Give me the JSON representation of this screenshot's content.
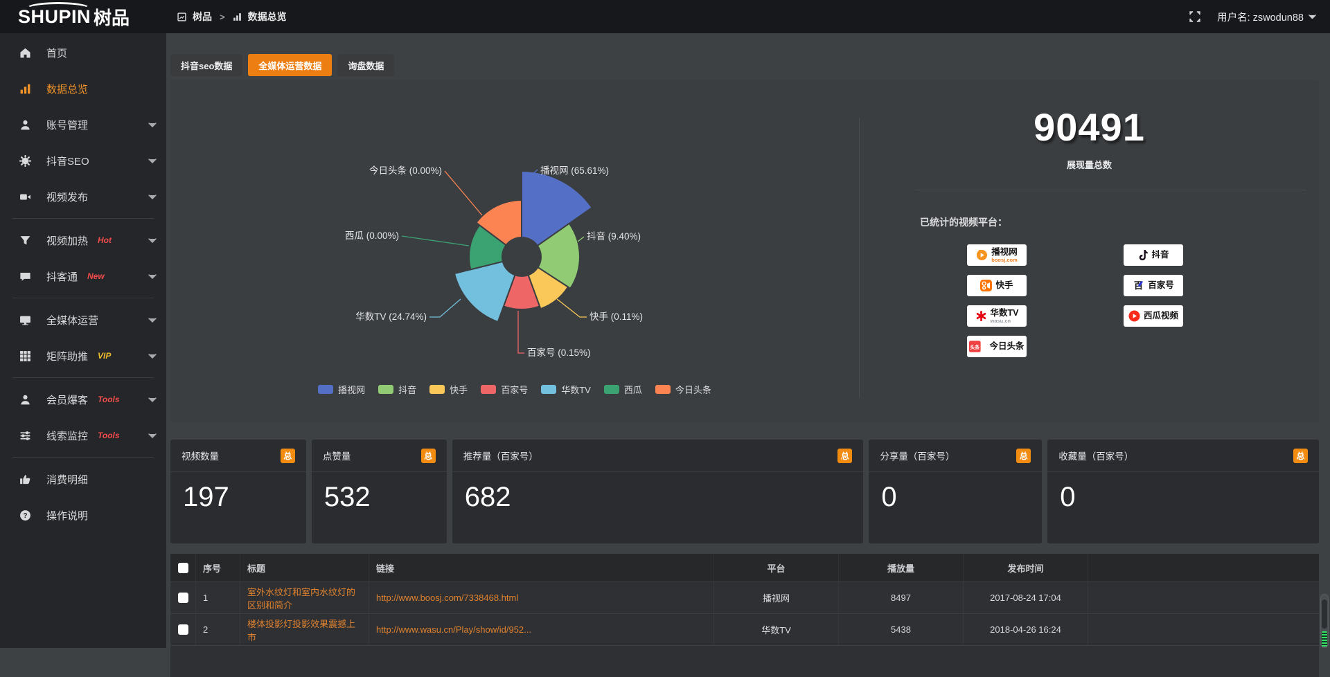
{
  "colors": {
    "accent_orange": "#ed7e11",
    "badge_orange": "#f18c11",
    "sidebar_active_orange": "#f0932a",
    "hot_badge_red": "#f04b4b",
    "vip_badge_yellow": "#eebc2d",
    "link_orange": "#e0822f",
    "panel_bg": "#3b3e41"
  },
  "topbar": {
    "logo_main": "SHUPIN",
    "logo_cn": "树品",
    "breadcrumb_root": "树品",
    "breadcrumb_sep": ">",
    "breadcrumb_current": "数据总览",
    "username": "用户名: zswodun88"
  },
  "tabs": [
    {
      "label": "抖音seo数据",
      "active": false
    },
    {
      "label": "全媒体运营数据",
      "active": true
    },
    {
      "label": "询盘数据",
      "active": false
    }
  ],
  "sidebar": {
    "items": [
      {
        "type": "item",
        "icon": "home",
        "name": "home",
        "label": "首页"
      },
      {
        "type": "item",
        "icon": "bar-chart",
        "name": "data-overview",
        "label": "数据总览",
        "active": true
      },
      {
        "type": "item",
        "icon": "user",
        "name": "account-management",
        "label": "账号管理",
        "chevron": true
      },
      {
        "type": "item",
        "icon": "gear",
        "name": "douyin-seo",
        "label": "抖音SEO",
        "chevron": true
      },
      {
        "type": "item",
        "icon": "video-camera",
        "name": "video-publish",
        "label": "视频发布",
        "chevron": true
      },
      {
        "type": "divider"
      },
      {
        "type": "item",
        "icon": "funnel",
        "name": "video-heating",
        "label": "视频加热",
        "badge": "Hot",
        "badge_style": "red",
        "chevron": true
      },
      {
        "type": "item",
        "icon": "chat-bubble",
        "name": "douketong",
        "label": "抖客通",
        "badge": "New",
        "badge_style": "red",
        "chevron": true
      },
      {
        "type": "divider"
      },
      {
        "type": "item",
        "icon": "monitor",
        "name": "all-media-operation",
        "label": "全媒体运营",
        "chevron": true
      },
      {
        "type": "item",
        "icon": "grid",
        "name": "matrix-boost",
        "label": "矩阵助推",
        "badge": "VIP",
        "badge_style": "yellow",
        "chevron": true
      },
      {
        "type": "divider"
      },
      {
        "type": "item",
        "icon": "user",
        "name": "member-baoke",
        "label": "会员爆客",
        "badge": "Tools",
        "badge_style": "red",
        "chevron": true
      },
      {
        "type": "item",
        "icon": "sliders",
        "name": "lead-monitoring",
        "label": "线索监控",
        "badge": "Tools",
        "badge_style": "red",
        "chevron": true
      },
      {
        "type": "divider"
      },
      {
        "type": "item",
        "icon": "thumbs-up",
        "name": "consumption-details",
        "label": "消费明细"
      },
      {
        "type": "item",
        "icon": "question",
        "name": "operation-guide",
        "label": "操作说明"
      }
    ]
  },
  "chart_data": {
    "type": "pie",
    "style": "rose",
    "legend_position": "bottom",
    "center": [
      507,
      256
    ],
    "inner_radius": 28,
    "slices": [
      {
        "name": "播视网",
        "value": 65.61,
        "pct": "65.61%",
        "color": "#5470c6",
        "start": 0,
        "end": 55,
        "r": 124,
        "line": [
          [
            518,
            141
          ],
          [
            530,
            130
          ]
        ],
        "label_pos": [
          534,
          136
        ],
        "anchor": "start"
      },
      {
        "name": "抖音",
        "value": 9.4,
        "pct": "9.40%",
        "color": "#91cc75",
        "start": 55,
        "end": 123,
        "r": 84,
        "line": [
          [
            588,
            234
          ],
          [
            597,
            227
          ]
        ],
        "label_pos": [
          601,
          231
        ],
        "anchor": "start"
      },
      {
        "name": "快手",
        "value": 0.11,
        "pct": "0.11%",
        "color": "#fac858",
        "start": 123,
        "end": 160,
        "r": 80,
        "line": [
          [
            558,
            317
          ],
          [
            591,
            343
          ],
          [
            601,
            343
          ]
        ],
        "label_pos": [
          605,
          347
        ],
        "anchor": "start"
      },
      {
        "name": "百家号",
        "value": 0.15,
        "pct": "0.15%",
        "color": "#ee6666",
        "start": 160,
        "end": 200,
        "r": 76,
        "line": [
          [
            502,
            334
          ],
          [
            502,
            395
          ],
          [
            511,
            395
          ]
        ],
        "label_pos": [
          515,
          399
        ],
        "anchor": "start"
      },
      {
        "name": "华数TV",
        "value": 24.74,
        "pct": "24.74%",
        "color": "#73c0de",
        "start": 200,
        "end": 256,
        "r": 100,
        "line": [
          [
            419,
            317
          ],
          [
            389,
            343
          ],
          [
            374,
            343
          ]
        ],
        "label_pos": [
          370,
          347
        ],
        "anchor": "end"
      },
      {
        "name": "西瓜",
        "value": 0.0,
        "pct": "0.00%",
        "color": "#3ba272",
        "start": 256,
        "end": 307,
        "r": 76,
        "line": [
          [
            431,
            240
          ],
          [
            334,
            226
          ]
        ],
        "label_pos": [
          330,
          230
        ],
        "anchor": "end"
      },
      {
        "name": "今日头条",
        "value": 0.0,
        "pct": "0.00%",
        "color": "#fc8452",
        "start": 307,
        "end": 360,
        "r": 82,
        "line": [
          [
            450,
            196
          ],
          [
            396,
            132
          ]
        ],
        "label_pos": [
          392,
          136
        ],
        "anchor": "end"
      }
    ],
    "legend": [
      "播视网",
      "抖音",
      "快手",
      "百家号",
      "华数TV",
      "西瓜",
      "今日头条"
    ]
  },
  "summary": {
    "total": "90491",
    "total_label": "展现量总数",
    "platforms_title": "已统计的视频平台：",
    "platform_columns": [
      [
        {
          "icon": "boosj",
          "name": "播视网",
          "sub": "boosj.com"
        },
        {
          "icon": "kuaishou",
          "name": "快手"
        },
        {
          "icon": "wasu",
          "name": "华数TV",
          "sub": "wasu.cn"
        },
        {
          "icon": "toutiao",
          "name": "今日头条"
        }
      ],
      [
        {
          "icon": "douyin",
          "name": "抖音"
        },
        {
          "icon": "baijiahao",
          "name": "百家号"
        },
        {
          "icon": "xigua",
          "name": "西瓜视频"
        }
      ]
    ]
  },
  "stat_cards": [
    {
      "title": "视频数量",
      "badge": "总",
      "value": "197"
    },
    {
      "title": "点赞量",
      "badge": "总",
      "value": "532"
    },
    {
      "title": "推荐量（百家号）",
      "badge": "总",
      "value": "682"
    },
    {
      "title": "分享量（百家号）",
      "badge": "总",
      "value": "0"
    },
    {
      "title": "收藏量（百家号）",
      "badge": "总",
      "value": "0"
    }
  ],
  "table": {
    "headers": [
      "序号",
      "标题",
      "链接",
      "平台",
      "播放量",
      "发布时间"
    ],
    "rows": [
      {
        "checked": false,
        "cells": [
          "1",
          "室外水纹灯和室内水纹灯的区别和简介",
          "http://www.boosj.com/7338468.html",
          "播视网",
          "8497",
          "2017-08-24 17:04"
        ]
      },
      {
        "checked": false,
        "cells": [
          "2",
          "楼体投影灯投影效果震撼上市",
          "http://www.wasu.cn/Play/show/id/952...",
          "华数TV",
          "5438",
          "2018-04-26 16:24"
        ]
      }
    ]
  }
}
